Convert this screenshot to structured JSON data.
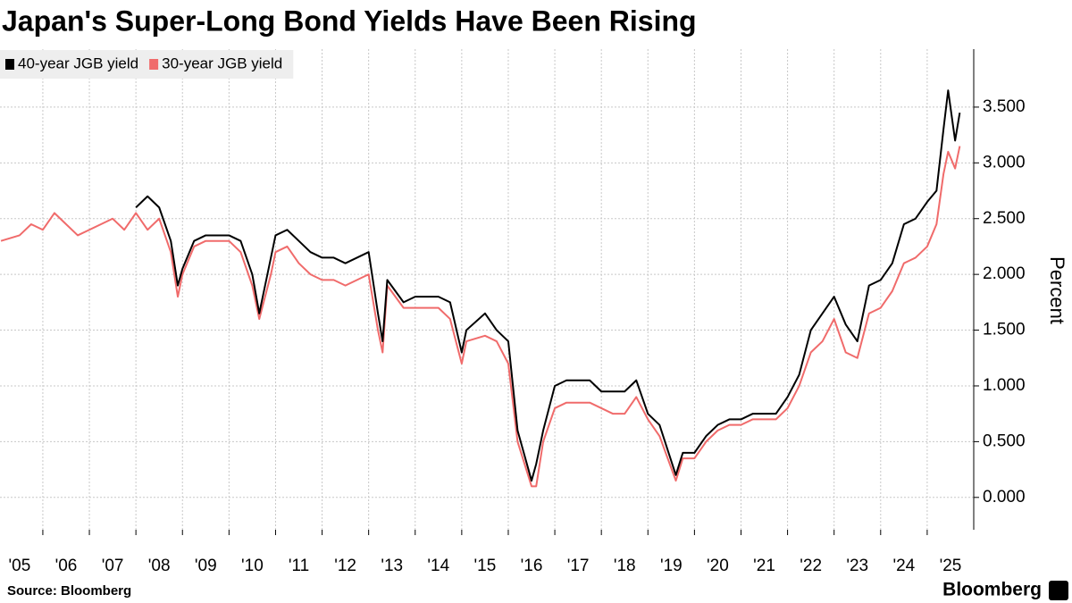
{
  "chart_data": {
    "type": "line",
    "title": "Japan's Super-Long Bond Yields Have Been Rising",
    "y_label": "Percent",
    "source": "Source: Bloomberg",
    "brand": "Bloomberg",
    "legend": "top-left",
    "grid": true,
    "x": [
      2005.1,
      2005.5,
      2005.75,
      2006.0,
      2006.25,
      2006.5,
      2006.75,
      2007.0,
      2007.25,
      2007.5,
      2007.75,
      2008.0,
      2008.25,
      2008.5,
      2008.75,
      2008.9,
      2009.0,
      2009.25,
      2009.5,
      2009.75,
      2010.0,
      2010.25,
      2010.5,
      2010.65,
      2010.9,
      2011.0,
      2011.25,
      2011.5,
      2011.75,
      2012.0,
      2012.25,
      2012.5,
      2012.75,
      2013.0,
      2013.2,
      2013.3,
      2013.4,
      2013.75,
      2014.0,
      2014.25,
      2014.5,
      2014.75,
      2015.0,
      2015.1,
      2015.5,
      2015.75,
      2016.0,
      2016.2,
      2016.5,
      2016.6,
      2016.75,
      2017.0,
      2017.25,
      2017.5,
      2017.75,
      2018.0,
      2018.25,
      2018.5,
      2018.75,
      2019.0,
      2019.25,
      2019.6,
      2019.75,
      2020.0,
      2020.25,
      2020.5,
      2020.75,
      2021.0,
      2021.25,
      2021.5,
      2021.75,
      2022.0,
      2022.25,
      2022.5,
      2022.75,
      2023.0,
      2023.25,
      2023.5,
      2023.75,
      2024.0,
      2024.25,
      2024.5,
      2024.75,
      2025.0,
      2025.2,
      2025.35,
      2025.45,
      2025.6,
      2025.7
    ],
    "series": [
      {
        "name": "30-year JGB yield",
        "color": "#f06b6b",
        "values": [
          2.3,
          2.35,
          2.45,
          2.4,
          2.55,
          2.45,
          2.35,
          2.4,
          2.45,
          2.5,
          2.4,
          2.55,
          2.4,
          2.5,
          2.2,
          1.8,
          2.0,
          2.25,
          2.3,
          2.3,
          2.3,
          2.2,
          1.9,
          1.6,
          2.0,
          2.2,
          2.25,
          2.1,
          2.0,
          1.95,
          1.95,
          1.9,
          1.95,
          2.0,
          1.5,
          1.3,
          1.9,
          1.7,
          1.7,
          1.7,
          1.7,
          1.6,
          1.2,
          1.4,
          1.45,
          1.4,
          1.2,
          0.5,
          0.1,
          0.1,
          0.5,
          0.8,
          0.85,
          0.85,
          0.85,
          0.8,
          0.75,
          0.75,
          0.9,
          0.7,
          0.55,
          0.15,
          0.35,
          0.35,
          0.5,
          0.6,
          0.65,
          0.65,
          0.7,
          0.7,
          0.7,
          0.8,
          1.0,
          1.3,
          1.4,
          1.6,
          1.3,
          1.25,
          1.65,
          1.7,
          1.85,
          2.1,
          2.15,
          2.25,
          2.45,
          2.9,
          3.1,
          2.95,
          3.15
        ]
      },
      {
        "name": "40-year JGB yield",
        "color": "#000000",
        "values": [
          null,
          null,
          null,
          null,
          null,
          null,
          null,
          null,
          null,
          null,
          null,
          2.6,
          2.7,
          2.6,
          2.3,
          1.9,
          2.05,
          2.3,
          2.35,
          2.35,
          2.35,
          2.3,
          2.0,
          1.65,
          2.15,
          2.35,
          2.4,
          2.3,
          2.2,
          2.15,
          2.15,
          2.1,
          2.15,
          2.2,
          1.65,
          1.4,
          1.95,
          1.75,
          1.8,
          1.8,
          1.8,
          1.75,
          1.3,
          1.5,
          1.65,
          1.5,
          1.4,
          0.6,
          0.15,
          0.3,
          0.6,
          1.0,
          1.05,
          1.05,
          1.05,
          0.95,
          0.95,
          0.95,
          1.05,
          0.75,
          0.65,
          0.2,
          0.4,
          0.4,
          0.55,
          0.65,
          0.7,
          0.7,
          0.75,
          0.75,
          0.75,
          0.9,
          1.1,
          1.5,
          1.65,
          1.8,
          1.55,
          1.4,
          1.9,
          1.95,
          2.1,
          2.45,
          2.5,
          2.65,
          2.75,
          3.3,
          3.65,
          3.2,
          3.45
        ]
      }
    ],
    "xlim": [
      2005.08,
      2026.0
    ],
    "ylim": [
      -0.29,
      4.02
    ],
    "xticks": [
      {
        "value": 2005,
        "label": "'05"
      },
      {
        "value": 2006,
        "label": "'06"
      },
      {
        "value": 2007,
        "label": "'07"
      },
      {
        "value": 2008,
        "label": "'08"
      },
      {
        "value": 2009,
        "label": "'09"
      },
      {
        "value": 2010,
        "label": "'10"
      },
      {
        "value": 2011,
        "label": "'11"
      },
      {
        "value": 2012,
        "label": "'12"
      },
      {
        "value": 2013,
        "label": "'13"
      },
      {
        "value": 2014,
        "label": "'14"
      },
      {
        "value": 2015,
        "label": "'15"
      },
      {
        "value": 2016,
        "label": "'16"
      },
      {
        "value": 2017,
        "label": "'17"
      },
      {
        "value": 2018,
        "label": "'18"
      },
      {
        "value": 2019,
        "label": "'19"
      },
      {
        "value": 2020,
        "label": "'20"
      },
      {
        "value": 2021,
        "label": "'21"
      },
      {
        "value": 2022,
        "label": "'22"
      },
      {
        "value": 2023,
        "label": "'23"
      },
      {
        "value": 2024,
        "label": "'24"
      },
      {
        "value": 2025,
        "label": "'25"
      }
    ],
    "yticks": [
      {
        "value": 0,
        "label": "0.000"
      },
      {
        "value": 0.5,
        "label": "0.500"
      },
      {
        "value": 1,
        "label": "1.000"
      },
      {
        "value": 1.5,
        "label": "1.500"
      },
      {
        "value": 2,
        "label": "2.000"
      },
      {
        "value": 2.5,
        "label": "2.500"
      },
      {
        "value": 3,
        "label": "3.000"
      },
      {
        "value": 3.5,
        "label": "3.500"
      }
    ]
  }
}
